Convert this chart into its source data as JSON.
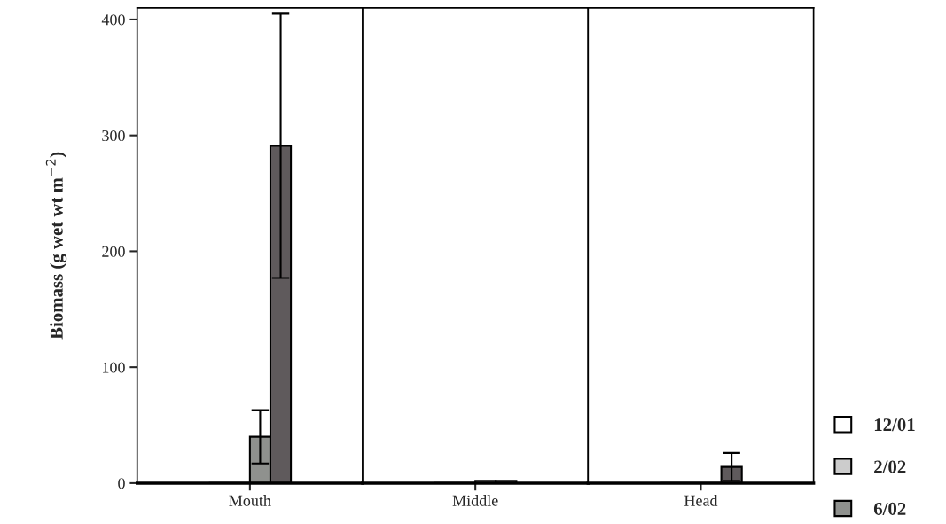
{
  "chart_data": [
    {
      "type": "bar",
      "ylabel": "Biomass (g wet wt m$^{−2}$)",
      "categories": [
        "Mouth"
      ],
      "ylim": [
        0,
        410
      ],
      "yticks": [
        0,
        100,
        200,
        300,
        400
      ],
      "series": [
        {
          "color": "#ffffff",
          "values": [
            0
          ]
        },
        {
          "color": "#cccccc",
          "values": [
            0
          ]
        },
        {
          "color": "#8f918e",
          "values": [
            40
          ],
          "errors": [
            23
          ]
        },
        {
          "color": "#5f5a5c",
          "values": [
            291
          ],
          "errors": [
            114
          ]
        }
      ]
    },
    {
      "type": "bar",
      "categories": [
        "Middle"
      ],
      "ylim": [
        0,
        410
      ],
      "yticks": [
        0,
        100,
        200,
        300,
        400
      ],
      "tick_labels": "x",
      "series": [
        {
          "color": "#ffffff",
          "values": [
            0
          ]
        },
        {
          "color": "#cccccc",
          "values": [
            0
          ]
        },
        {
          "color": "#8f918e",
          "values": [
            2
          ]
        },
        {
          "color": "#5f5a5c",
          "values": [
            2
          ]
        }
      ]
    },
    {
      "type": "bar",
      "categories": [
        "Head"
      ],
      "ylim": [
        0,
        410
      ],
      "yticks": [
        0,
        100,
        200,
        300,
        400
      ],
      "tick_labels": "x",
      "legend": "bottom right",
      "series": [
        {
          "name": "12/01",
          "color": "#ffffff",
          "values": [
            0
          ]
        },
        {
          "name": "2/02",
          "color": "#cccccc",
          "values": [
            0
          ]
        },
        {
          "name": "6/02",
          "color": "#8f918e",
          "values": [
            0
          ]
        },
        {
          "color": "#5f5a5c",
          "values": [
            14
          ],
          "errors": [
            12
          ]
        }
      ]
    }
  ]
}
